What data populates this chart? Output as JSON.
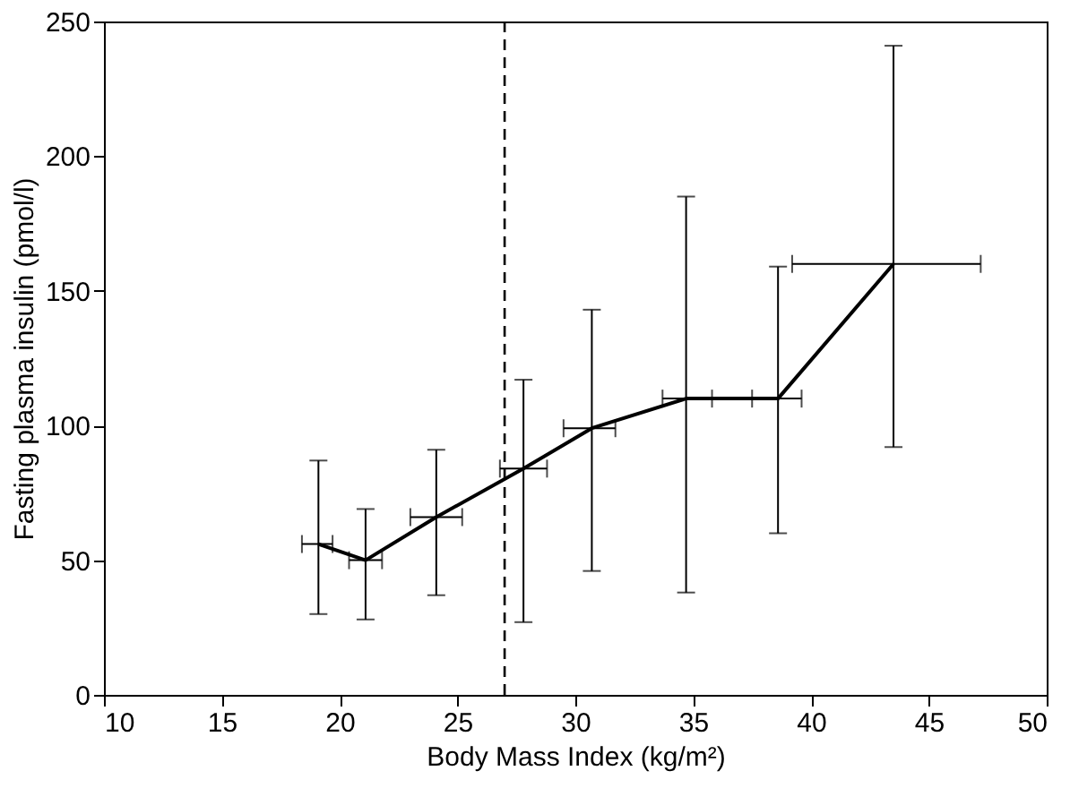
{
  "chart_data": {
    "type": "line",
    "xlabel": "Body Mass Index (kg/m²)",
    "ylabel": "Fasting plasma insulin (pmol/l)",
    "x": [
      19.1,
      21.1,
      24.1,
      27.8,
      30.7,
      34.7,
      38.6,
      43.5
    ],
    "series": [
      {
        "color": "#000000",
        "values": [
          56,
          50,
          66,
          84,
          99,
          110,
          110,
          160
        ],
        "errors": [
          [
            30,
            87
          ],
          [
            28,
            69
          ],
          [
            37,
            91
          ],
          [
            27,
            117
          ],
          [
            46,
            143
          ],
          [
            38,
            185
          ],
          [
            60,
            159
          ],
          [
            92,
            241
          ]
        ],
        "xerrors": [
          [
            18.4,
            19.7
          ],
          [
            20.4,
            21.8
          ],
          [
            23.0,
            25.2
          ],
          [
            26.8,
            28.8
          ],
          [
            29.5,
            31.7
          ],
          [
            33.7,
            35.8
          ],
          [
            37.5,
            39.6
          ],
          [
            39.2,
            47.2
          ]
        ]
      }
    ],
    "xlim": [
      10,
      50
    ],
    "xticks": [
      10,
      15,
      20,
      25,
      30,
      35,
      40,
      45,
      50
    ],
    "ylim": [
      0,
      250
    ],
    "yticks": [
      0,
      50,
      100,
      150,
      200,
      250
    ],
    "ref_lines": [
      {
        "axis": "x",
        "value": 27,
        "line_style": "dashed",
        "color": "#000000"
      }
    ],
    "marker": "none",
    "line_style": "solid",
    "grid": false
  }
}
